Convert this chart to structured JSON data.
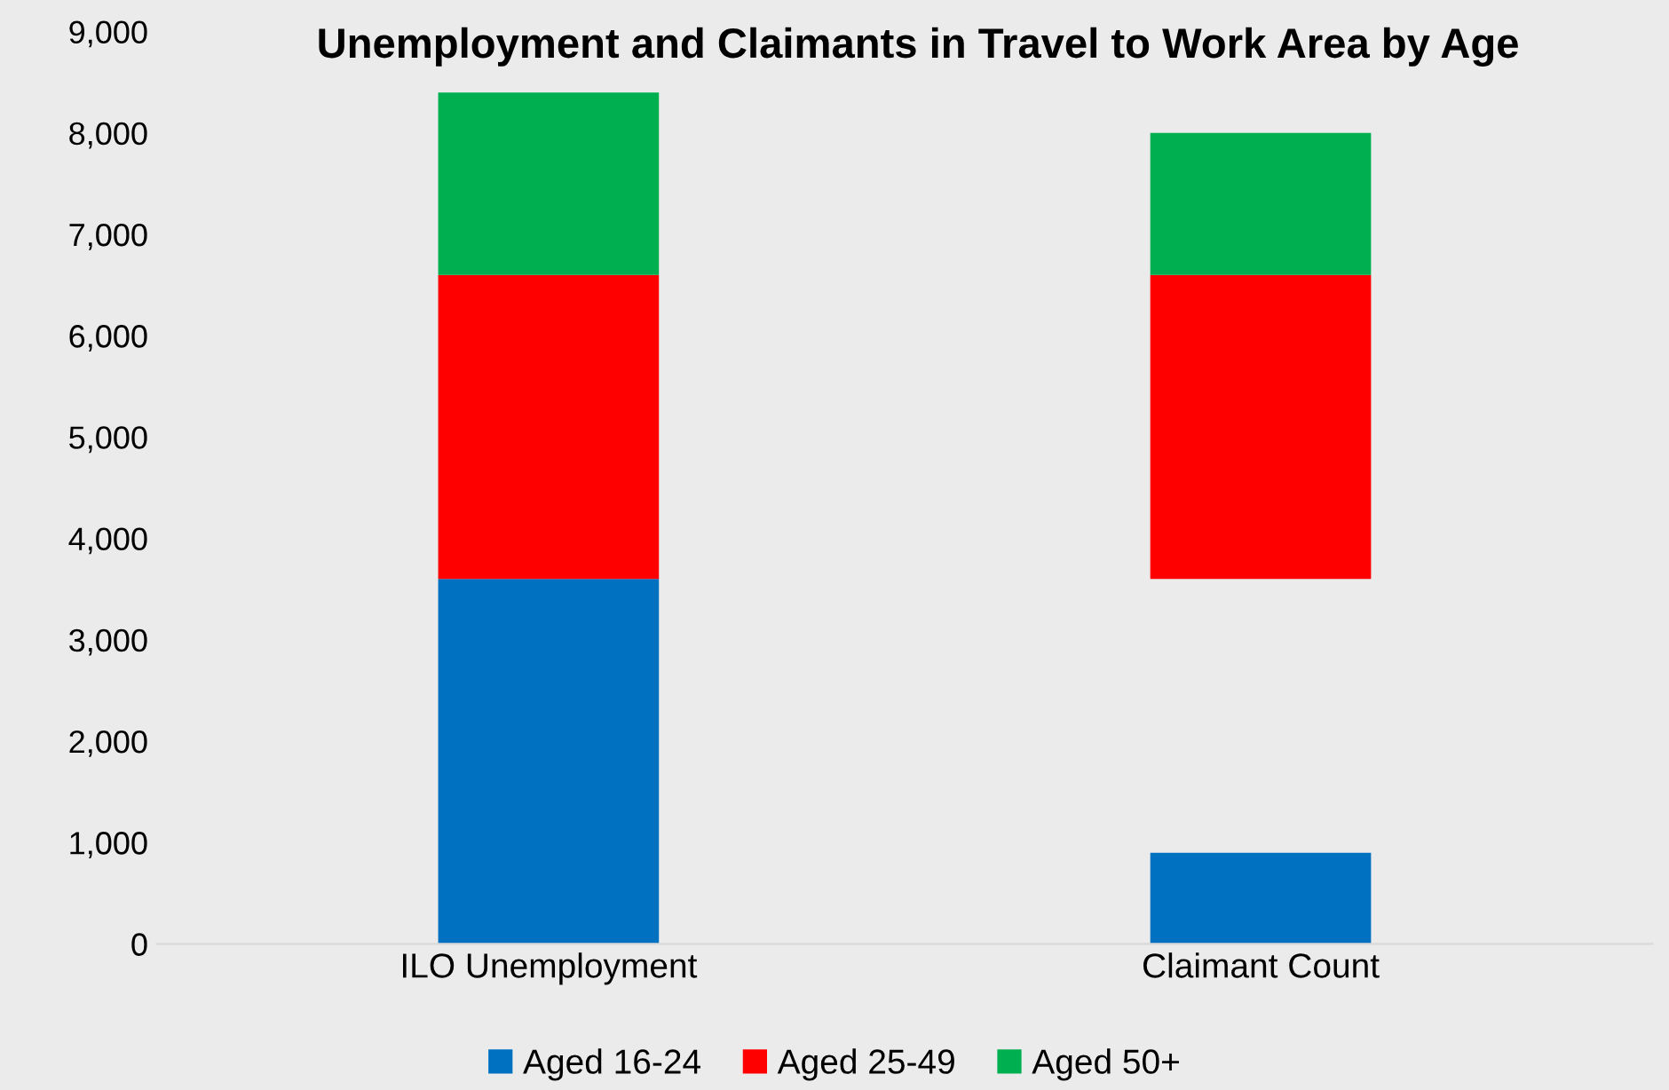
{
  "chart_data": {
    "type": "bar",
    "title": "Unemployment and Claimants in Travel to Work Area by Age",
    "categories": [
      "ILO Unemployment",
      "Claimant Count"
    ],
    "series": [
      {
        "name": "Aged 16-24",
        "color": "#0070c0",
        "values": [
          3600,
          900
        ],
        "base": [
          0,
          0
        ]
      },
      {
        "name": "Aged 25-49",
        "color": "#ff0000",
        "values": [
          3000,
          3000
        ],
        "base": [
          3600,
          3600
        ]
      },
      {
        "name": "Aged 50+",
        "color": "#00b050",
        "values": [
          1800,
          1400
        ],
        "base": [
          6600,
          6600
        ]
      }
    ],
    "ylim": [
      0,
      9000
    ],
    "yticks": [
      {
        "value": 0,
        "label": "0"
      },
      {
        "value": 1000,
        "label": "1,000"
      },
      {
        "value": 2000,
        "label": "2,000"
      },
      {
        "value": 3000,
        "label": "3,000"
      },
      {
        "value": 4000,
        "label": "4,000"
      },
      {
        "value": 5000,
        "label": "5,000"
      },
      {
        "value": 6000,
        "label": "6,000"
      },
      {
        "value": 7000,
        "label": "7,000"
      },
      {
        "value": 8000,
        "label": "8,000"
      },
      {
        "value": 9000,
        "label": "9,000"
      }
    ],
    "grid": false,
    "legend": "bottom"
  }
}
